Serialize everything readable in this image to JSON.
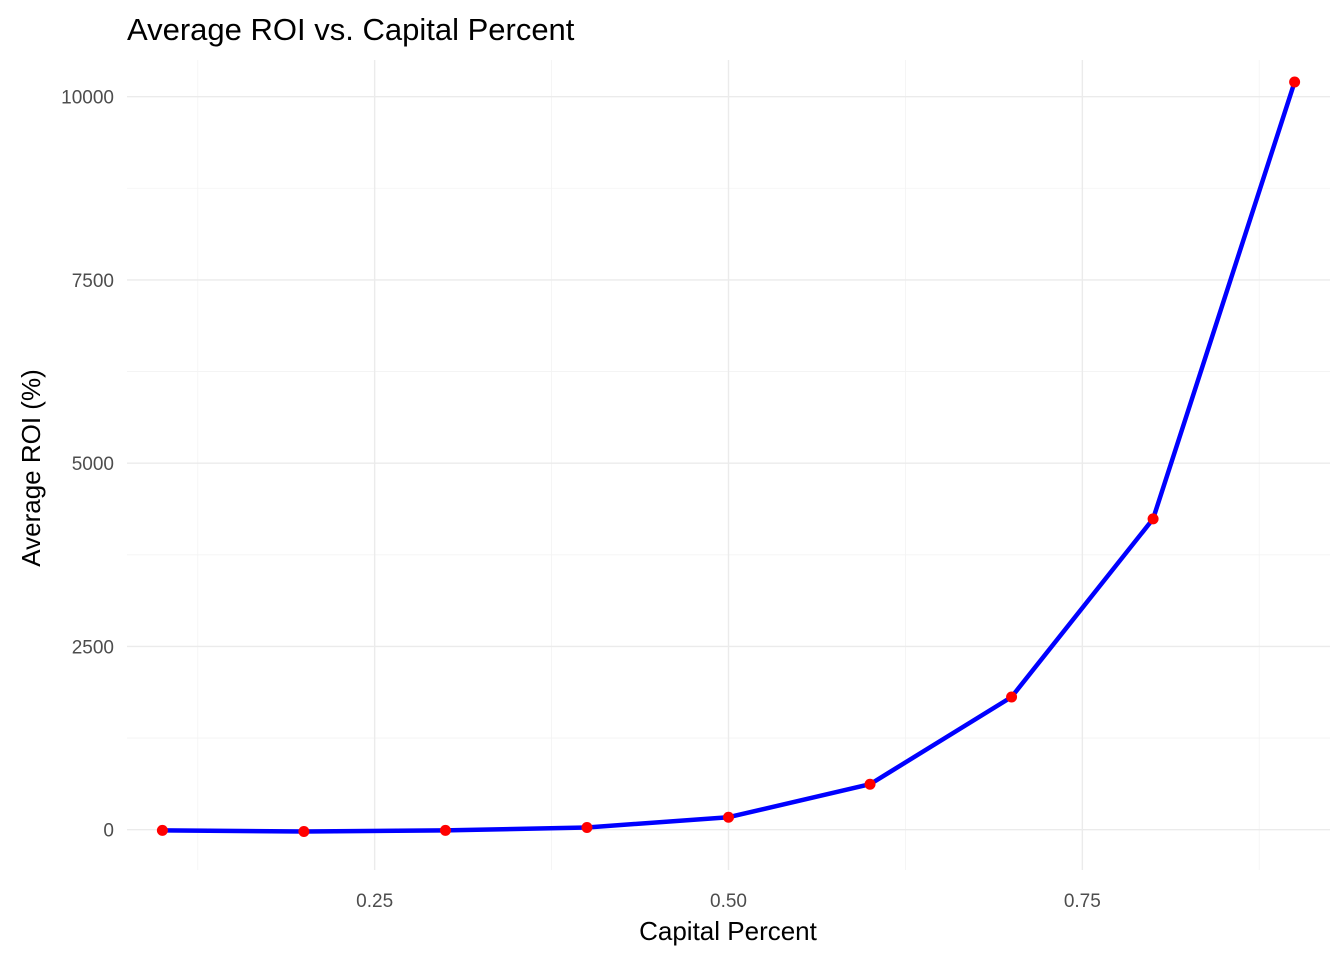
{
  "chart_data": {
    "type": "line",
    "title": "Average ROI vs. Capital Percent",
    "xlabel": "Capital Percent",
    "ylabel": "Average ROI (%)",
    "xlim": [
      0.075,
      0.925
    ],
    "ylim": [
      -550,
      10500
    ],
    "x_ticks": [
      0.25,
      0.5,
      0.75
    ],
    "x_tick_labels": [
      "0.25",
      "0.50",
      "0.75"
    ],
    "x_minor_ticks": [
      0.125,
      0.375,
      0.625,
      0.875
    ],
    "y_ticks": [
      0,
      2500,
      5000,
      7500,
      10000
    ],
    "y_tick_labels": [
      "0",
      "2500",
      "5000",
      "7500",
      "10000"
    ],
    "y_minor_ticks": [
      1250,
      3750,
      6250,
      8750
    ],
    "grid": true,
    "legend": "none",
    "line_color": "#0000ff",
    "point_color": "#ff0000",
    "series": [
      {
        "x": [
          0.1,
          0.2,
          0.3,
          0.4,
          0.5,
          0.6,
          0.7,
          0.8,
          0.9
        ],
        "y": [
          -10,
          -25,
          -10,
          30,
          170,
          620,
          1810,
          4240,
          10200
        ]
      }
    ]
  }
}
